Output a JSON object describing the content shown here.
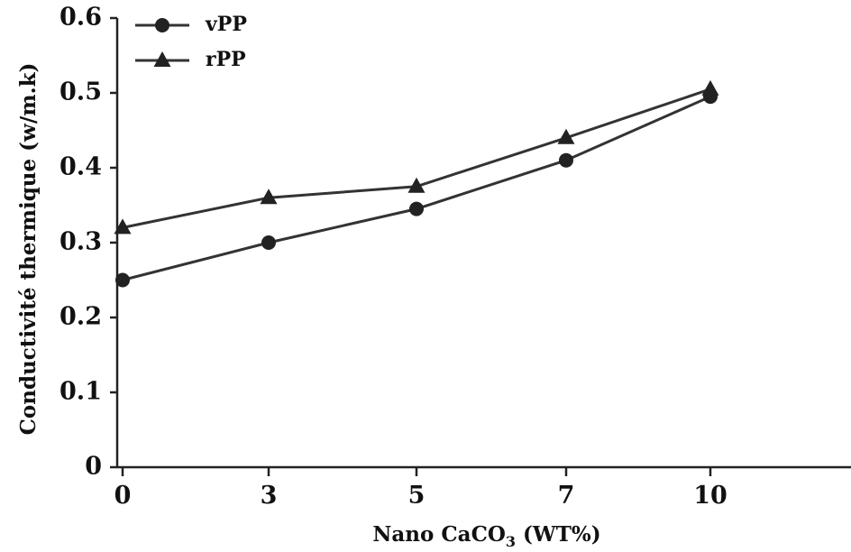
{
  "chart_data": {
    "type": "line",
    "xlabel": "Nano CaCO3 (WT%)",
    "xlabel_parts": {
      "pre": "Nano CaCO",
      "sub": "3",
      "post": " (WT%)"
    },
    "ylabel": "Conductivité thermique (w/m.k)",
    "x_categories": [
      "0",
      "3",
      "5",
      "7",
      "10"
    ],
    "ylim": [
      0,
      0.6
    ],
    "yticks": [
      "0",
      "0.1",
      "0.2",
      "0.3",
      "0.4",
      "0.5",
      "0.6"
    ],
    "grid": false,
    "legend_position": "top-left",
    "series": [
      {
        "name": "vPP",
        "marker": "circle",
        "color": "#222222",
        "values": [
          0.25,
          0.3,
          0.345,
          0.41,
          0.495
        ]
      },
      {
        "name": "rPP",
        "marker": "triangle",
        "color": "#222222",
        "values": [
          0.32,
          0.36,
          0.375,
          0.44,
          0.505
        ]
      }
    ]
  }
}
